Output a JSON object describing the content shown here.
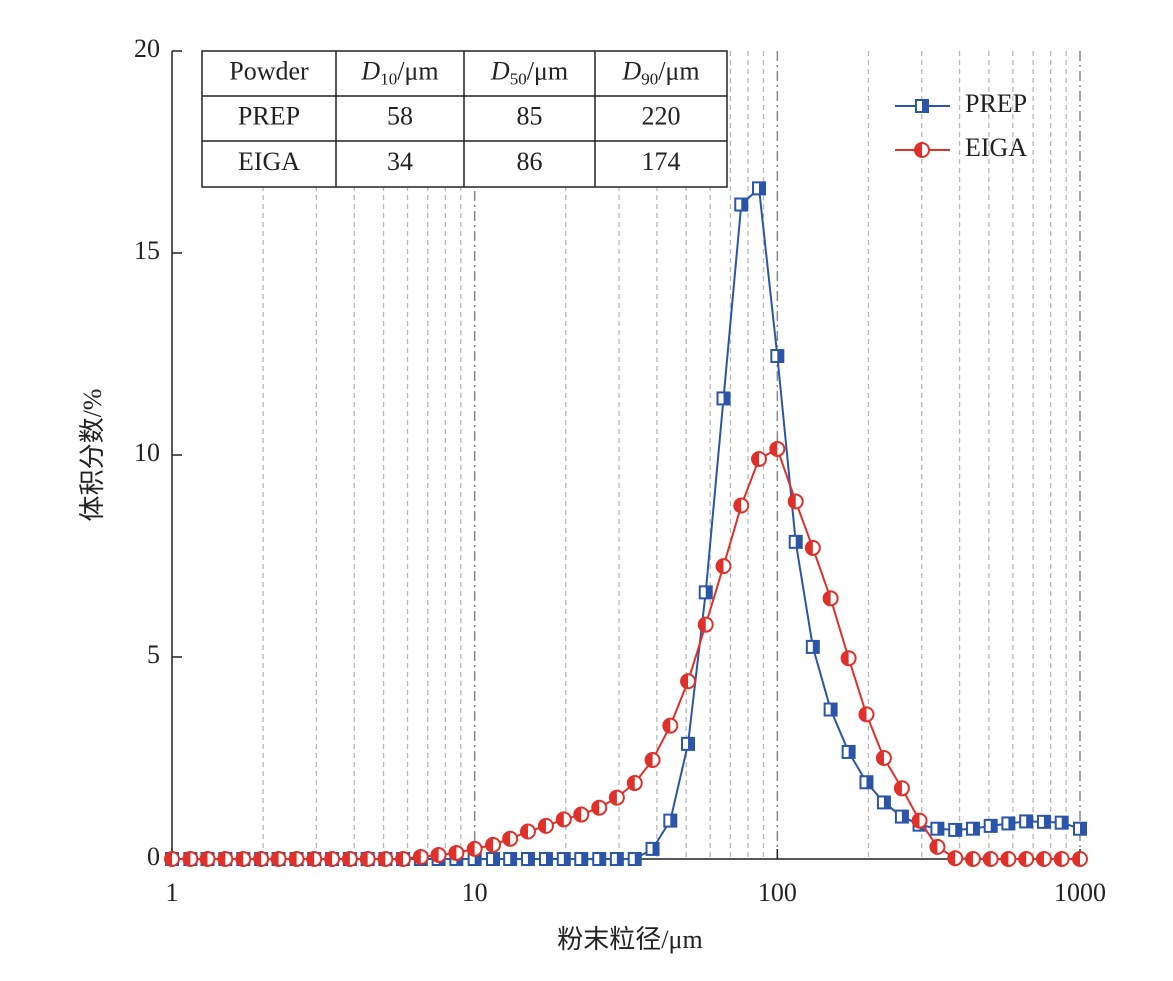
{
  "chart_data": {
    "type": "line",
    "log_x": true,
    "grid": true,
    "legend": "upper right",
    "xlabel": "粉末粒径/μm",
    "ylabel": "体积分数/%",
    "xlim": [
      1,
      1000
    ],
    "xticks": [
      1,
      10,
      100,
      1000
    ],
    "xminor": [
      2,
      3,
      4,
      5,
      6,
      7,
      8,
      9,
      20,
      30,
      40,
      50,
      60,
      70,
      80,
      90,
      200,
      300,
      400,
      500,
      600,
      700,
      800,
      900
    ],
    "ylim": [
      0,
      20
    ],
    "yticks": [
      0,
      5,
      10,
      15,
      20
    ],
    "x": [
      1,
      1.15,
      1.31,
      1.5,
      1.72,
      1.97,
      2.25,
      2.58,
      2.95,
      3.38,
      3.87,
      4.43,
      5.07,
      5.8,
      6.64,
      7.6,
      8.7,
      10,
      11.5,
      13.1,
      15,
      17.2,
      19.7,
      22.5,
      25.8,
      29.5,
      33.8,
      38.7,
      44.3,
      50.7,
      58,
      66.4,
      76,
      87,
      100,
      115,
      131,
      150,
      172,
      197,
      225,
      258,
      295,
      338,
      387,
      443,
      507,
      580,
      664,
      760,
      870,
      1000
    ],
    "series": [
      {
        "name": "PREP",
        "color": "#2a55a8",
        "marker": "half-square",
        "values": [
          0,
          0,
          0,
          0,
          0,
          0,
          0,
          0,
          0,
          0,
          0,
          0,
          0,
          0,
          0,
          0,
          0,
          0,
          0,
          0,
          0,
          0,
          0,
          0,
          0,
          0,
          0,
          0.25,
          0.95,
          2.85,
          6.6,
          11.4,
          16.2,
          16.6,
          12.45,
          7.85,
          5.25,
          3.7,
          2.65,
          1.9,
          1.4,
          1.05,
          0.85,
          0.75,
          0.72,
          0.75,
          0.82,
          0.88,
          0.93,
          0.92,
          0.9,
          0.75
        ]
      },
      {
        "name": "EIGA",
        "color": "#e0302a",
        "marker": "half-circle",
        "values": [
          0,
          0,
          0,
          0,
          0,
          0,
          0,
          0,
          0,
          0,
          0,
          0,
          0,
          0,
          0.05,
          0.1,
          0.15,
          0.25,
          0.35,
          0.5,
          0.68,
          0.82,
          0.98,
          1.1,
          1.27,
          1.52,
          1.88,
          2.45,
          3.3,
          4.4,
          5.8,
          7.25,
          8.75,
          9.9,
          10.15,
          8.85,
          7.7,
          6.45,
          4.97,
          3.58,
          2.5,
          1.75,
          0.95,
          0.3,
          0.02,
          0,
          0,
          0,
          0,
          0,
          0,
          0
        ]
      }
    ],
    "table": {
      "header": [
        "Powder",
        {
          "italic": "D",
          "sub": "10",
          "rest": "/μm"
        },
        {
          "italic": "D",
          "sub": "50",
          "rest": "/μm"
        },
        {
          "italic": "D",
          "sub": "90",
          "rest": "/μm"
        }
      ],
      "rows": [
        [
          "PREP",
          "58",
          "85",
          "220"
        ],
        [
          "EIGA",
          "34",
          "86",
          "174"
        ]
      ]
    }
  }
}
